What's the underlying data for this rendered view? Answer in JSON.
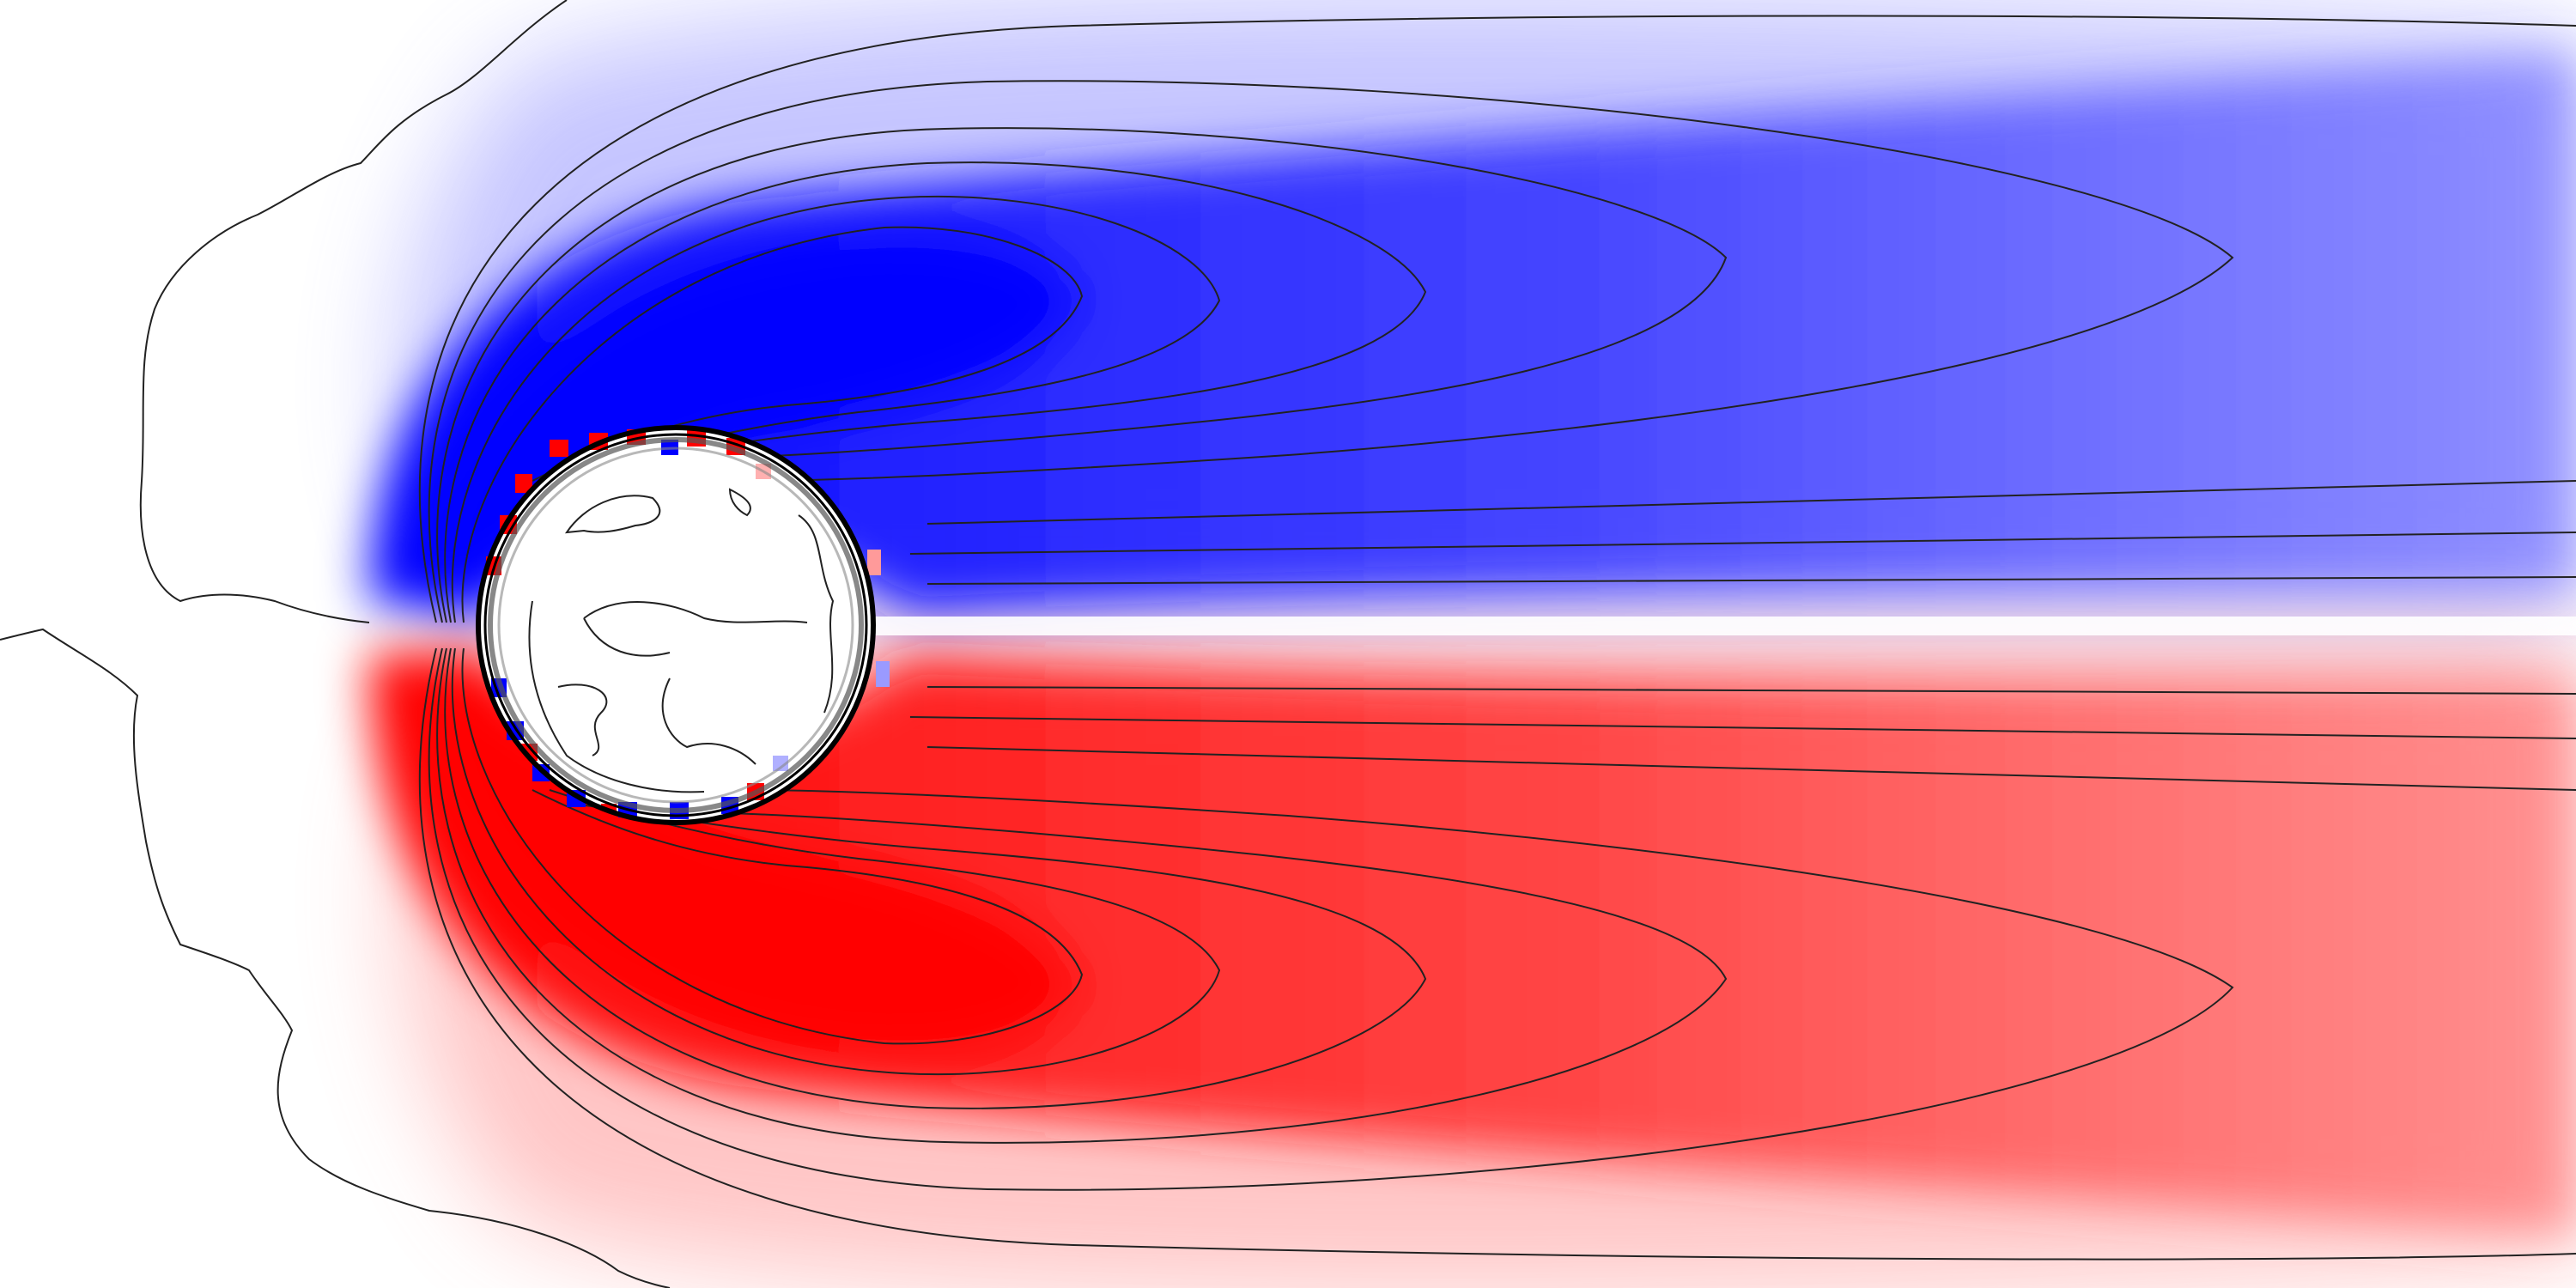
{
  "figure": {
    "title": "",
    "kind": "vorticity contour field past a circular cylinder",
    "colors": {
      "positive": "#ff0000",
      "negative": "#0000ff",
      "background": "#ffffff",
      "contour_line": "#222222",
      "cylinder_outline": "#000000"
    }
  }
}
